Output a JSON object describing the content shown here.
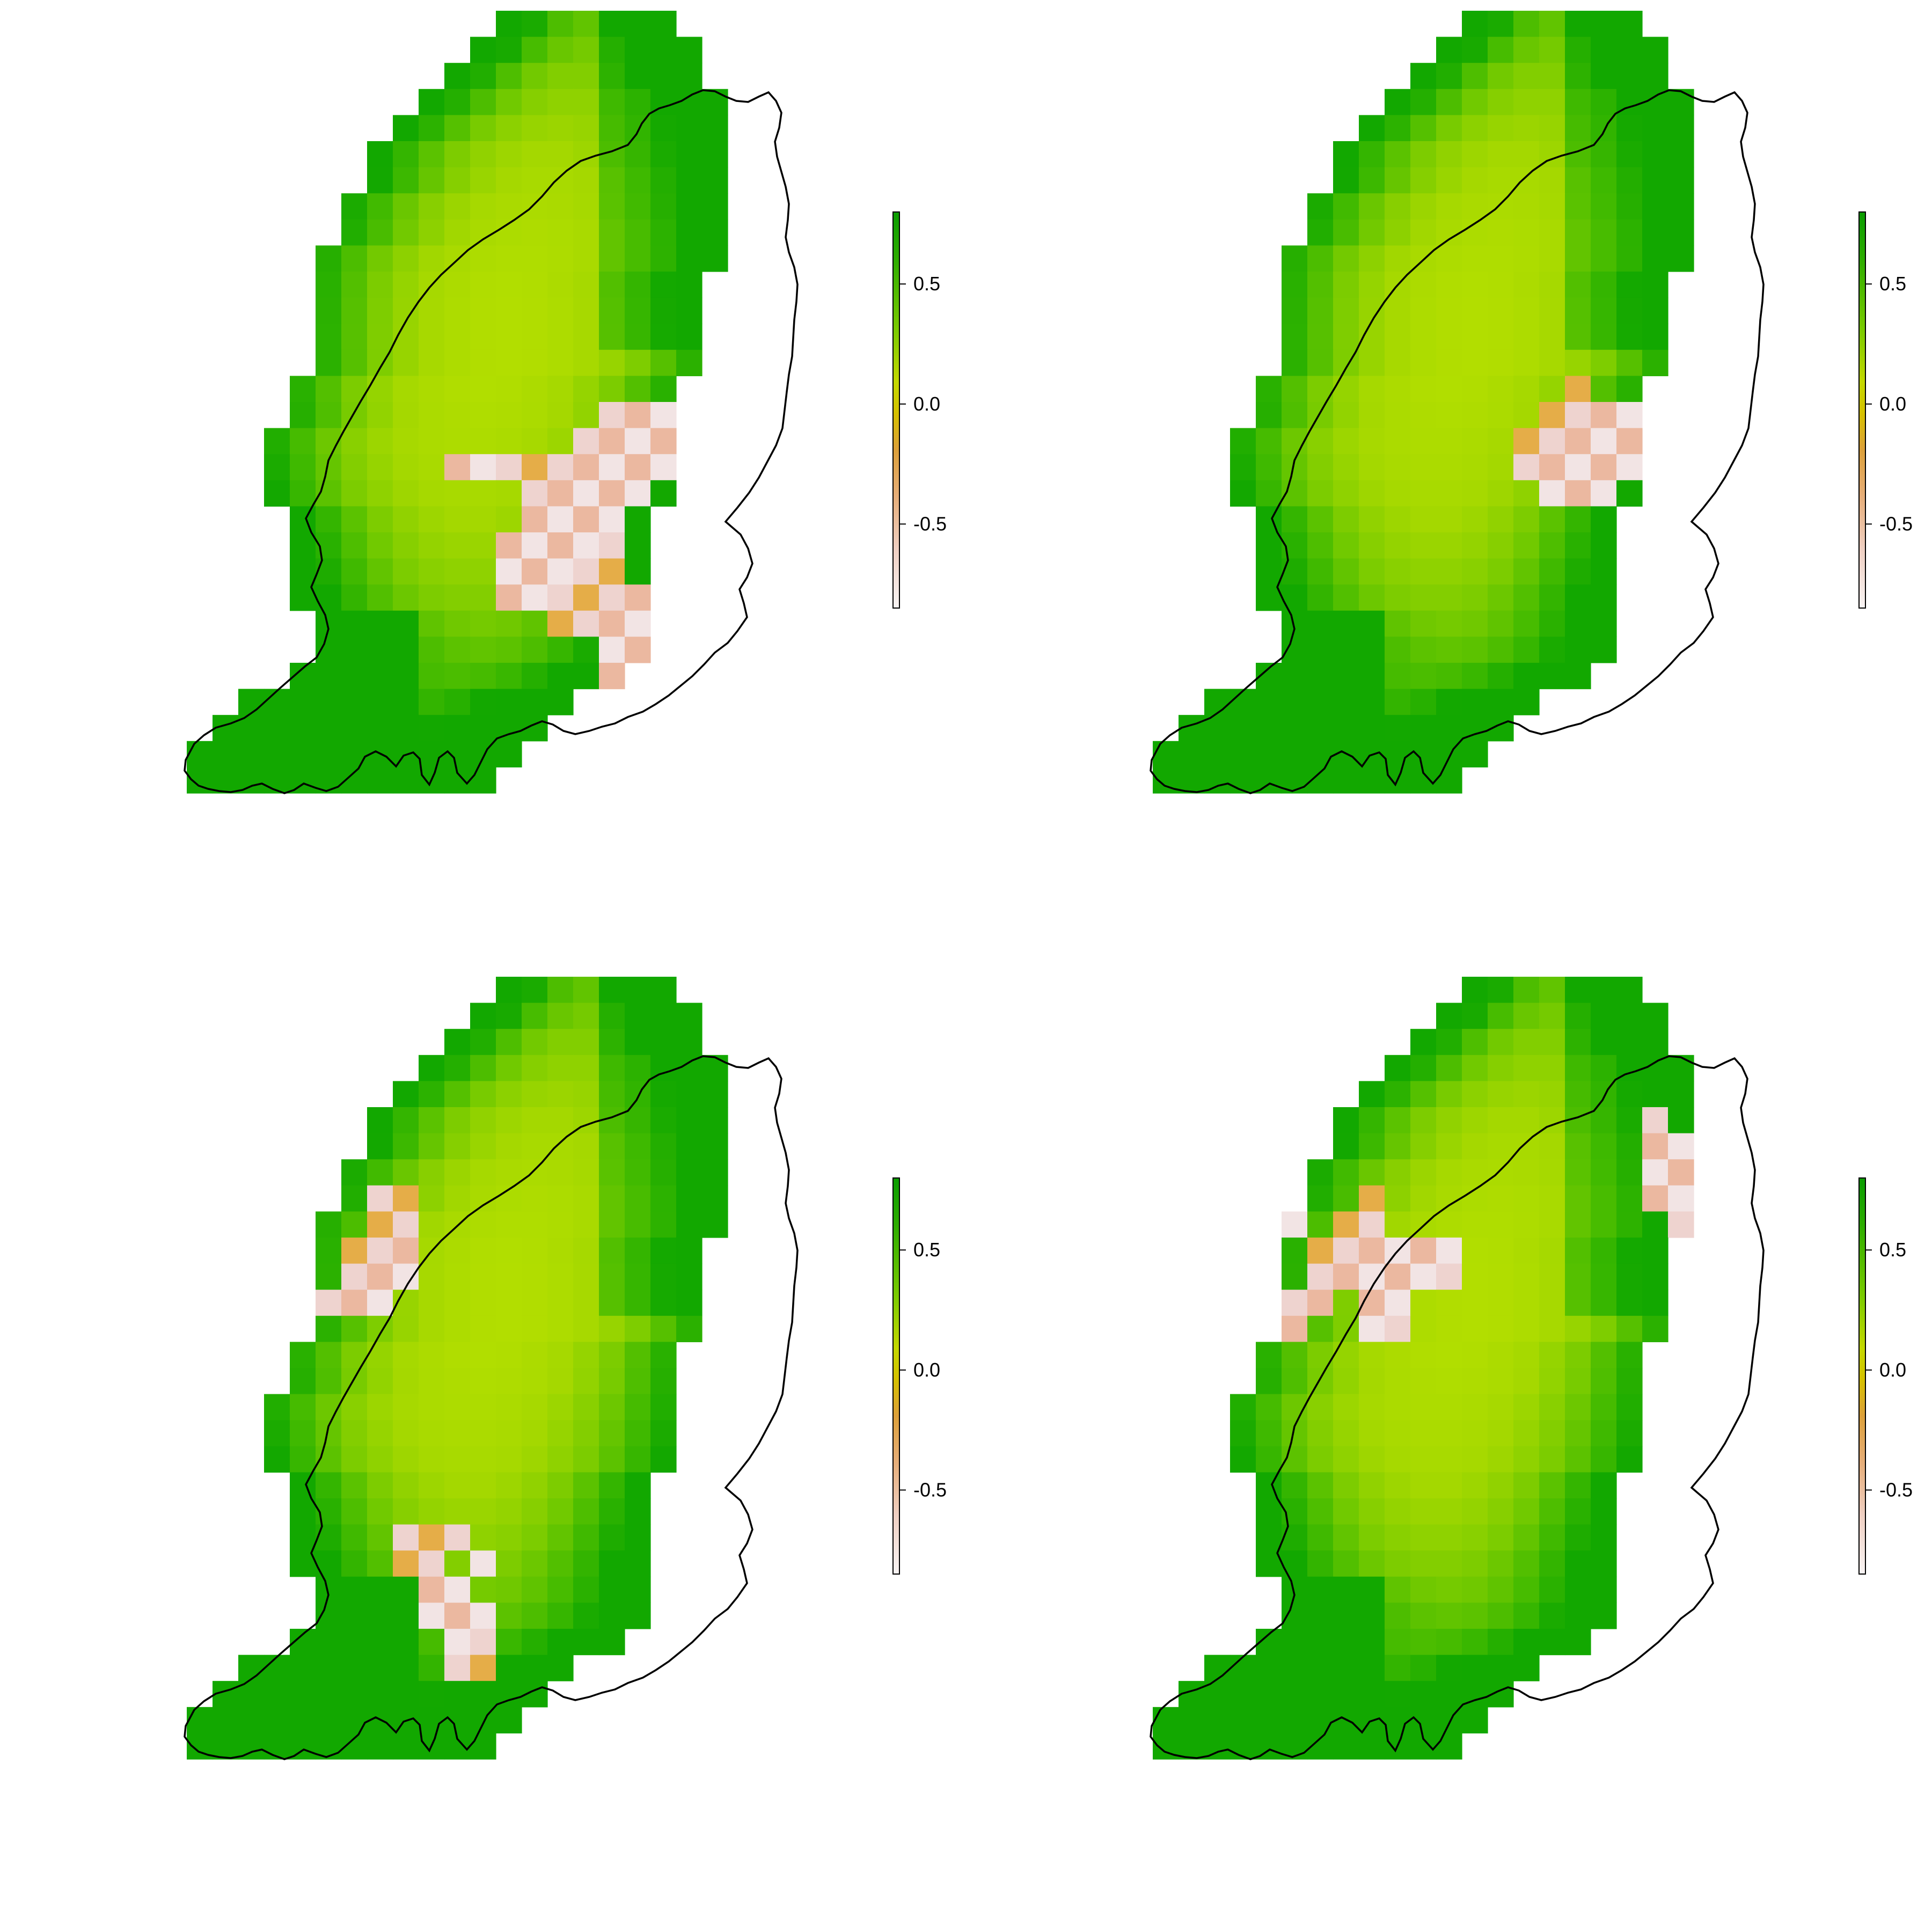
{
  "figure": {
    "layout": "2x2",
    "panels": [
      {
        "id": "top-left",
        "anomaly_cells": [
          [
            15,
            16
          ],
          [
            15,
            17
          ],
          [
            15,
            18
          ],
          [
            16,
            15
          ],
          [
            16,
            16
          ],
          [
            16,
            17
          ],
          [
            16,
            18
          ],
          [
            16,
            19
          ],
          [
            17,
            10
          ],
          [
            17,
            11
          ],
          [
            17,
            12
          ],
          [
            17,
            13
          ],
          [
            17,
            14
          ],
          [
            17,
            15
          ],
          [
            17,
            16
          ],
          [
            17,
            17
          ],
          [
            17,
            18
          ],
          [
            17,
            19
          ],
          [
            18,
            13
          ],
          [
            18,
            14
          ],
          [
            18,
            15
          ],
          [
            18,
            16
          ],
          [
            18,
            17
          ],
          [
            18,
            19
          ],
          [
            19,
            13
          ],
          [
            19,
            14
          ],
          [
            19,
            15
          ],
          [
            19,
            16
          ],
          [
            20,
            12
          ],
          [
            20,
            13
          ],
          [
            20,
            14
          ],
          [
            20,
            15
          ],
          [
            20,
            16
          ],
          [
            21,
            12
          ],
          [
            21,
            13
          ],
          [
            21,
            14
          ],
          [
            21,
            15
          ],
          [
            21,
            16
          ],
          [
            22,
            12
          ],
          [
            22,
            13
          ],
          [
            22,
            14
          ],
          [
            22,
            15
          ],
          [
            22,
            16
          ],
          [
            22,
            17
          ],
          [
            23,
            14
          ],
          [
            23,
            15
          ],
          [
            23,
            16
          ],
          [
            23,
            17
          ],
          [
            24,
            16
          ],
          [
            24,
            17
          ],
          [
            25,
            16
          ]
        ]
      },
      {
        "id": "top-right",
        "anomaly_cells": [
          [
            14,
            16
          ],
          [
            15,
            15
          ],
          [
            15,
            16
          ],
          [
            15,
            17
          ],
          [
            15,
            18
          ],
          [
            15,
            19
          ],
          [
            15,
            20
          ],
          [
            16,
            14
          ],
          [
            16,
            15
          ],
          [
            16,
            16
          ],
          [
            16,
            17
          ],
          [
            16,
            18
          ],
          [
            16,
            19
          ],
          [
            16,
            20
          ],
          [
            17,
            14
          ],
          [
            17,
            15
          ],
          [
            17,
            16
          ],
          [
            17,
            17
          ],
          [
            17,
            18
          ],
          [
            17,
            19
          ],
          [
            17,
            20
          ],
          [
            18,
            15
          ],
          [
            18,
            16
          ],
          [
            18,
            17
          ]
        ]
      },
      {
        "id": "bottom-left",
        "anomaly_cells": [
          [
            8,
            7
          ],
          [
            8,
            8
          ],
          [
            9,
            7
          ],
          [
            9,
            8
          ],
          [
            10,
            6
          ],
          [
            10,
            7
          ],
          [
            10,
            8
          ],
          [
            11,
            6
          ],
          [
            11,
            7
          ],
          [
            11,
            8
          ],
          [
            12,
            5
          ],
          [
            12,
            6
          ],
          [
            12,
            7
          ],
          [
            21,
            8
          ],
          [
            21,
            9
          ],
          [
            21,
            10
          ],
          [
            22,
            8
          ],
          [
            22,
            9
          ],
          [
            22,
            11
          ],
          [
            23,
            9
          ],
          [
            23,
            10
          ],
          [
            24,
            9
          ],
          [
            24,
            10
          ],
          [
            24,
            11
          ],
          [
            25,
            10
          ],
          [
            25,
            11
          ],
          [
            26,
            10
          ],
          [
            26,
            11
          ]
        ]
      },
      {
        "id": "bottom-right",
        "anomaly_cells": [
          [
            5,
            19
          ],
          [
            5,
            21
          ],
          [
            6,
            19
          ],
          [
            6,
            20
          ],
          [
            6,
            21
          ],
          [
            7,
            19
          ],
          [
            7,
            20
          ],
          [
            7,
            21
          ],
          [
            7,
            22
          ],
          [
            8,
            19
          ],
          [
            8,
            20
          ],
          [
            8,
            21
          ],
          [
            8,
            22
          ],
          [
            9,
            20
          ],
          [
            9,
            21
          ],
          [
            9,
            22
          ],
          [
            10,
            21
          ],
          [
            10,
            22
          ],
          [
            8,
            8
          ],
          [
            9,
            5
          ],
          [
            9,
            7
          ],
          [
            9,
            8
          ],
          [
            10,
            6
          ],
          [
            10,
            7
          ],
          [
            10,
            8
          ],
          [
            10,
            9
          ],
          [
            10,
            10
          ],
          [
            10,
            11
          ],
          [
            11,
            6
          ],
          [
            11,
            7
          ],
          [
            11,
            8
          ],
          [
            11,
            9
          ],
          [
            11,
            10
          ],
          [
            11,
            11
          ],
          [
            12,
            5
          ],
          [
            12,
            6
          ],
          [
            12,
            8
          ],
          [
            12,
            9
          ],
          [
            13,
            5
          ],
          [
            13,
            8
          ],
          [
            13,
            9
          ]
        ]
      }
    ]
  },
  "colorbar": {
    "ticks": [
      {
        "value": 0.5,
        "label": "0.5"
      },
      {
        "value": 0.0,
        "label": "0.0"
      },
      {
        "value": -0.5,
        "label": "-0.5"
      }
    ],
    "min": -0.85,
    "max": 0.8
  },
  "colors": {
    "strong_green": "#12a800",
    "mid_green": "#6cc700",
    "yellow_green": "#addc00",
    "yellow": "#d4d400",
    "orange": "#e5ad48",
    "salmon": "#ebb8a0",
    "pale_pink": "#f2e4e4",
    "coastline": "#000000"
  }
}
